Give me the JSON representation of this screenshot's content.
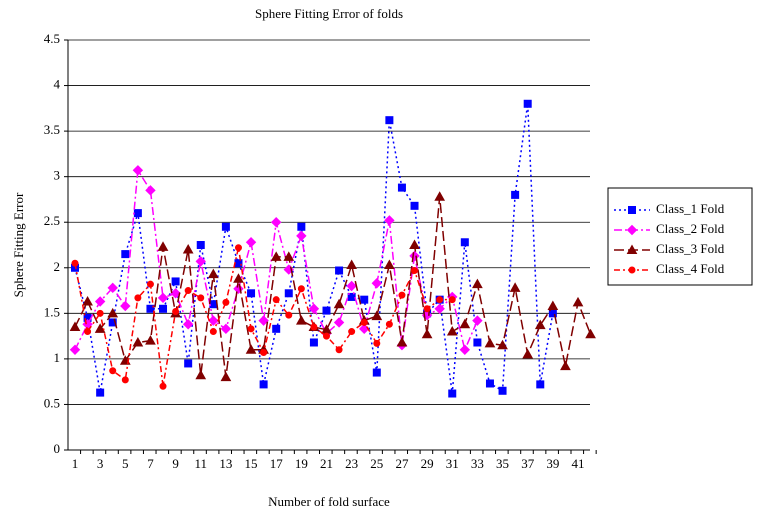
{
  "chart_data": {
    "type": "line",
    "title": "Sphere Fitting Error of folds",
    "x_label": "Number of fold surface",
    "y_label": "Sphere Fitting Error",
    "categories": [
      1,
      null,
      3,
      null,
      5,
      null,
      7,
      null,
      9,
      null,
      11,
      null,
      13,
      null,
      15,
      null,
      17,
      null,
      19,
      null,
      21,
      null,
      23,
      null,
      25,
      null,
      27,
      null,
      29,
      null,
      31,
      null,
      33,
      null,
      35,
      null,
      37,
      null,
      39,
      null,
      41,
      null
    ],
    "ylim": [
      0,
      4.5
    ],
    "yticks": [
      0,
      0.5,
      1,
      1.5,
      2,
      2.5,
      3,
      3.5,
      4,
      4.5
    ],
    "grid": true,
    "legend": "right",
    "series": [
      {
        "name": "Class_1 Fold",
        "color": "#0000ff",
        "marker": "square",
        "dash": "2,3",
        "values": [
          2.0,
          1.45,
          0.63,
          1.4,
          2.15,
          2.6,
          1.55,
          1.55,
          1.85,
          0.95,
          2.25,
          1.6,
          2.45,
          2.05,
          1.72,
          0.72,
          1.33,
          1.72,
          2.45,
          1.18,
          1.53,
          1.97,
          1.68,
          1.65,
          0.85,
          3.62,
          2.88,
          2.68,
          1.5,
          1.65,
          0.62,
          2.28,
          1.18,
          0.73,
          0.65,
          2.8,
          3.8,
          0.72,
          1.5,
          null,
          null,
          null
        ]
      },
      {
        "name": "Class_2 Fold",
        "color": "#ff00ff",
        "marker": "diamond",
        "dash": "8,3,2,3",
        "values": [
          1.1,
          1.38,
          1.63,
          1.78,
          1.58,
          3.07,
          2.85,
          1.67,
          1.72,
          1.38,
          2.07,
          1.42,
          1.33,
          1.77,
          2.28,
          1.42,
          2.5,
          1.98,
          2.35,
          1.55,
          1.28,
          1.4,
          1.8,
          1.33,
          1.83,
          2.52,
          1.15,
          2.13,
          1.48,
          1.55,
          1.68,
          1.1,
          1.42,
          null,
          null,
          null,
          null,
          null,
          null,
          null,
          null,
          null
        ]
      },
      {
        "name": "Class_3 Fold",
        "color": "#800000",
        "marker": "triangle",
        "dash": "10,4",
        "values": [
          1.35,
          1.63,
          1.33,
          1.5,
          0.98,
          1.18,
          1.2,
          2.23,
          1.5,
          2.2,
          0.82,
          1.93,
          0.8,
          1.88,
          1.1,
          1.1,
          2.12,
          2.12,
          1.42,
          1.35,
          1.32,
          1.6,
          2.03,
          1.42,
          1.47,
          2.03,
          1.18,
          2.25,
          1.27,
          2.78,
          1.3,
          1.38,
          1.82,
          1.17,
          1.15,
          1.78,
          1.05,
          1.37,
          1.58,
          0.92,
          1.62,
          1.27
        ]
      },
      {
        "name": "Class_4 Fold",
        "color": "#ff0000",
        "marker": "circle",
        "dash": "6,3,2,3",
        "values": [
          2.05,
          1.3,
          1.5,
          0.87,
          0.77,
          1.67,
          1.82,
          0.7,
          1.52,
          1.75,
          1.67,
          1.3,
          1.62,
          2.22,
          1.33,
          1.07,
          1.65,
          1.48,
          1.77,
          1.35,
          1.25,
          1.1,
          1.3,
          1.4,
          1.17,
          1.38,
          1.7,
          1.97,
          1.55,
          1.65,
          1.65,
          null,
          null,
          null,
          null,
          null,
          null,
          null,
          null,
          null,
          null,
          null
        ]
      }
    ]
  }
}
